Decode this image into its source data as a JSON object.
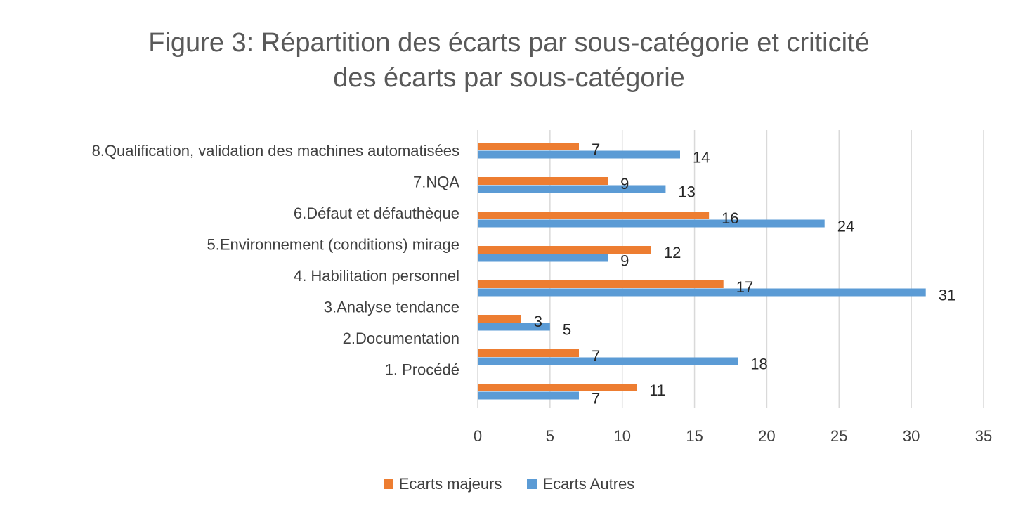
{
  "chart_data": {
    "type": "bar",
    "orientation": "horizontal",
    "title_line1": "Figure 3: Répartition des écarts par sous-catégorie et criticité",
    "title_line2": "des écarts par sous-catégorie",
    "categories": [
      "8.Qualification, validation des machines automatisées",
      "7.NQA",
      "6.Défaut et défauthèque",
      "5.Environnement (conditions) mirage",
      "4. Habilitation personnel",
      "3.Analyse tendance",
      "2.Documentation",
      "1. Procédé"
    ],
    "bar_groups": [
      {
        "major": 7,
        "autres": 14
      },
      {
        "major": 9,
        "autres": 13
      },
      {
        "major": 16,
        "autres": 24
      },
      {
        "major": 12,
        "autres": 9
      },
      {
        "major": 17,
        "autres": 31
      },
      {
        "major": 3,
        "autres": 5
      },
      {
        "major": 7,
        "autres": 18
      },
      {
        "major": 11,
        "autres": 7
      }
    ],
    "series": [
      {
        "name": "Ecarts majeurs",
        "color": "#ED7D31"
      },
      {
        "name": "Ecarts Autres",
        "color": "#5B9BD5"
      }
    ],
    "x_ticks": [
      "0",
      "5",
      "10",
      "15",
      "20",
      "25",
      "30",
      "35"
    ],
    "xlim": [
      0,
      35
    ],
    "grid": "vertical",
    "legend_position": "bottom"
  }
}
